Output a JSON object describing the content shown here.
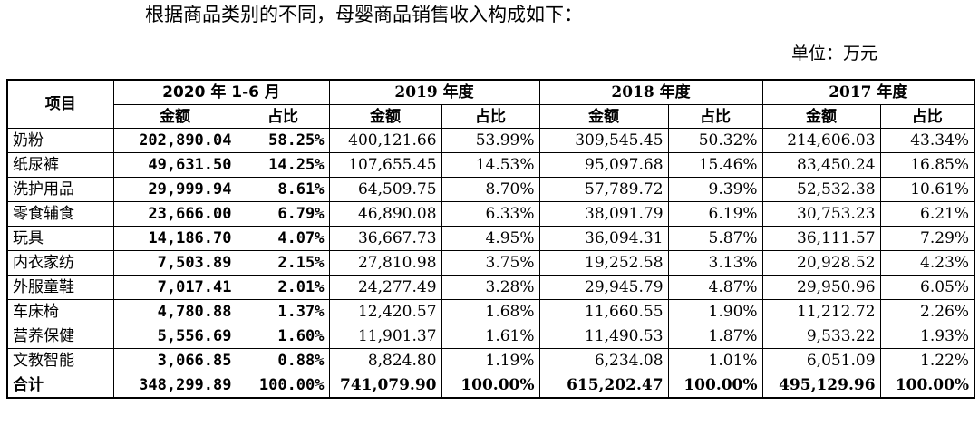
{
  "intro_text": "根据商品类别的不同，母婴商品销售收入构成如下：",
  "unit_label": "单位：万元",
  "table": {
    "item_header": "项目",
    "periods": [
      "2020 年 1-6 月",
      "2019 年度",
      "2018 年度",
      "2017 年度"
    ],
    "sub_headers": [
      "金额",
      "占比",
      "金额",
      "占比",
      "金额",
      "占比",
      "金额",
      "占比"
    ],
    "rows": [
      {
        "name": "奶粉",
        "cells": [
          "202,890.04",
          "58.25%",
          "400,121.66",
          "53.99%",
          "309,545.45",
          "50.32%",
          "214,606.03",
          "43.34%"
        ]
      },
      {
        "name": "纸尿裤",
        "cells": [
          "49,631.50",
          "14.25%",
          "107,655.45",
          "14.53%",
          "95,097.68",
          "15.46%",
          "83,450.24",
          "16.85%"
        ]
      },
      {
        "name": "洗护用品",
        "cells": [
          "29,999.94",
          "8.61%",
          "64,509.75",
          "8.70%",
          "57,789.72",
          "9.39%",
          "52,532.38",
          "10.61%"
        ]
      },
      {
        "name": "零食辅食",
        "cells": [
          "23,666.00",
          "6.79%",
          "46,890.08",
          "6.33%",
          "38,091.79",
          "6.19%",
          "30,753.23",
          "6.21%"
        ]
      },
      {
        "name": "玩具",
        "cells": [
          "14,186.70",
          "4.07%",
          "36,667.73",
          "4.95%",
          "36,094.31",
          "5.87%",
          "36,111.57",
          "7.29%"
        ]
      },
      {
        "name": "内衣家纺",
        "cells": [
          "7,503.89",
          "2.15%",
          "27,810.98",
          "3.75%",
          "19,252.58",
          "3.13%",
          "20,928.52",
          "4.23%"
        ]
      },
      {
        "name": "外服童鞋",
        "cells": [
          "7,017.41",
          "2.01%",
          "24,277.49",
          "3.28%",
          "29,945.79",
          "4.87%",
          "29,950.96",
          "6.05%"
        ]
      },
      {
        "name": "车床椅",
        "cells": [
          "4,780.88",
          "1.37%",
          "12,420.57",
          "1.68%",
          "11,660.55",
          "1.90%",
          "11,212.72",
          "2.26%"
        ]
      },
      {
        "name": "营养保健",
        "cells": [
          "5,556.69",
          "1.60%",
          "11,901.37",
          "1.61%",
          "11,490.53",
          "1.87%",
          "9,533.22",
          "1.93%"
        ]
      },
      {
        "name": "文教智能",
        "cells": [
          "3,066.85",
          "0.88%",
          "8,824.80",
          "1.19%",
          "6,234.08",
          "1.01%",
          "6,051.09",
          "1.22%"
        ]
      }
    ],
    "total": {
      "name": "合计",
      "cells": [
        "348,299.89",
        "100.00%",
        "741,079.90",
        "100.00%",
        "615,202.47",
        "100.00%",
        "495,129.96",
        "100.00%"
      ]
    }
  }
}
